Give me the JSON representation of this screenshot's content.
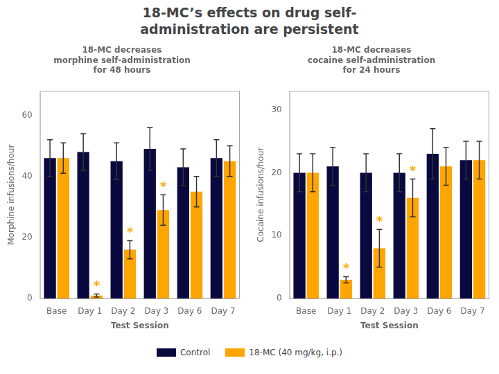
{
  "title": [
    "18-MC’s effects on drug self-",
    "administration are persistent"
  ],
  "legend": "bottom",
  "chart_data": [
    {
      "type": "bar",
      "categories": [
        "Base",
        "Day 1",
        "Day 2",
        "Day 3",
        "Day 6",
        "Day 7"
      ],
      "series": [
        {
          "name": "Control",
          "color": "#090940",
          "values": [
            46,
            48,
            45,
            49,
            43,
            46
          ],
          "errors": [
            6,
            6,
            6,
            7,
            6,
            6
          ]
        },
        {
          "name": "18-MC (40 mg/kg, i.p.)",
          "color": "#FFA500",
          "values": [
            46,
            1,
            16,
            29,
            35,
            45
          ],
          "errors": [
            5,
            0.5,
            3,
            5,
            5,
            5
          ]
        }
      ],
      "xlabel": "Test Session",
      "ylabel": "Morphine infusions/hour",
      "ylim": [
        0,
        68
      ],
      "yticks": [
        0,
        20,
        40,
        60
      ],
      "grid": false,
      "annotations": [
        {
          "text": "18-MC decreases\nmorphine self-administration\nfor 48 hours"
        },
        {
          "text": "*",
          "category": "Day 1",
          "series": "18-MC (40 mg/kg, i.p.)"
        },
        {
          "text": "*",
          "category": "Day 2",
          "series": "18-MC (40 mg/kg, i.p.)"
        },
        {
          "text": "*",
          "category": "Day 3",
          "series": "18-MC (40 mg/kg, i.p.)"
        }
      ]
    },
    {
      "type": "bar",
      "categories": [
        "Base",
        "Day 1",
        "Day 2",
        "Day 3",
        "Day 6",
        "Day 7"
      ],
      "series": [
        {
          "name": "Control",
          "color": "#090940",
          "values": [
            20,
            21,
            20,
            20,
            23,
            22
          ],
          "errors": [
            3,
            3,
            3,
            3,
            4,
            3
          ]
        },
        {
          "name": "18-MC (40 mg/kg, i.p.)",
          "color": "#FFA500",
          "values": [
            20,
            3,
            8,
            16,
            21,
            22
          ],
          "errors": [
            3,
            0.5,
            3,
            3,
            3,
            3
          ]
        }
      ],
      "xlabel": "Test Session",
      "ylabel": "Cocaine infusions/hour",
      "ylim": [
        0,
        33
      ],
      "yticks": [
        0,
        10,
        20,
        30
      ],
      "grid": false,
      "annotations": [
        {
          "text": "18-MC decreases\ncocaine self-administration\nfor 24 hours"
        },
        {
          "text": "*",
          "category": "Day 1",
          "series": "18-MC (40 mg/kg, i.p.)"
        },
        {
          "text": "*",
          "category": "Day 2",
          "series": "18-MC (40 mg/kg, i.p.)"
        },
        {
          "text": "*",
          "category": "Day 3",
          "series": "18-MC (40 mg/kg, i.p.)"
        }
      ]
    }
  ]
}
